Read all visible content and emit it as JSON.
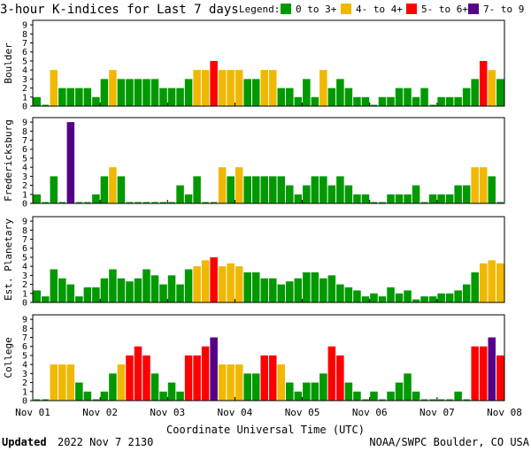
{
  "title": "3-hour K-indices for Last 7 days",
  "legend": {
    "label": "Legend:",
    "items": [
      {
        "label": "0 to 3+",
        "color": "#009900"
      },
      {
        "label": "4- to 4+",
        "color": "#f0b800"
      },
      {
        "label": "5- to 6+",
        "color": "#ff0000"
      },
      {
        "label": "7- to 9",
        "color": "#550088"
      }
    ]
  },
  "footer": {
    "updated_label": "Updated",
    "updated_value": "2022 Nov  7 2130",
    "credit": "NOAA/SWPC Boulder, CO USA"
  },
  "chart_data": {
    "type": "bar",
    "xlabel": "Coordinate Universal Time (UTC)",
    "x_ticks": [
      "Nov 01",
      "Nov 02",
      "Nov 03",
      "Nov 04",
      "Nov 05",
      "Nov 06",
      "Nov 07",
      "Nov 08"
    ],
    "ylim": [
      0,
      9
    ],
    "yticks": [
      0,
      1,
      2,
      3,
      4,
      5,
      6,
      7,
      8,
      9
    ],
    "bars_per_day": 8,
    "panels": [
      {
        "name": "Boulder",
        "values": [
          1,
          0,
          4,
          2,
          2,
          2,
          2,
          1,
          3,
          4,
          3,
          3,
          3,
          3,
          3,
          2,
          2,
          2,
          3,
          4,
          4,
          5,
          4,
          4,
          4,
          3,
          3,
          4,
          4,
          2,
          2,
          1,
          3,
          1,
          4,
          2,
          3,
          2,
          1,
          1,
          0,
          1,
          1,
          2,
          2,
          1,
          2,
          0,
          1,
          1,
          1,
          2,
          3,
          5,
          4,
          3
        ]
      },
      {
        "name": "Fredericksburg",
        "values": [
          1,
          0,
          3,
          0,
          9,
          0,
          0,
          1,
          3,
          4,
          3,
          0,
          0,
          0,
          0,
          0,
          0,
          2,
          1,
          3,
          0,
          0,
          4,
          3,
          4,
          3,
          3,
          3,
          3,
          3,
          2,
          1,
          2,
          3,
          3,
          2,
          3,
          2,
          1,
          1,
          0,
          0,
          1,
          1,
          1,
          2,
          0,
          1,
          1,
          1,
          2,
          2,
          4,
          4,
          3,
          0
        ]
      },
      {
        "name": "Est. Planetary",
        "values": [
          1.33,
          0.67,
          3.67,
          2.67,
          2,
          0.67,
          1.67,
          1.67,
          2.67,
          3.67,
          2.67,
          2.33,
          2.67,
          3.67,
          3,
          2,
          3,
          2,
          3.67,
          4,
          4.67,
          5,
          4,
          4.33,
          4,
          3.33,
          3.33,
          2.67,
          2.67,
          2,
          2.33,
          2.67,
          3.33,
          3.33,
          2.67,
          3,
          2,
          1.67,
          1.33,
          0.67,
          1,
          0.67,
          1.67,
          1,
          1.33,
          0.33,
          0.67,
          0.67,
          1,
          1,
          1.33,
          2,
          3.33,
          4.33,
          4.67,
          4.33
        ]
      },
      {
        "name": "College",
        "values": [
          0,
          0,
          4,
          4,
          4,
          2,
          1,
          0,
          1,
          3,
          4,
          5,
          6,
          5,
          3,
          1,
          2,
          1,
          5,
          5,
          6,
          7,
          4,
          4,
          4,
          3,
          3,
          5,
          5,
          4,
          2,
          1,
          2,
          2,
          3,
          6,
          5,
          2,
          1,
          0,
          1,
          0,
          1,
          2,
          3,
          1,
          0,
          0,
          0,
          0,
          1,
          0,
          6,
          6,
          7,
          5
        ]
      }
    ],
    "color_rules": [
      {
        "min": 0,
        "max": 4,
        "color": "#009900"
      },
      {
        "min": 4,
        "max": 5,
        "color": "#f0b800"
      },
      {
        "min": 5,
        "max": 7,
        "color": "#ff0000"
      },
      {
        "min": 7,
        "max": 10,
        "color": "#550088"
      }
    ]
  }
}
